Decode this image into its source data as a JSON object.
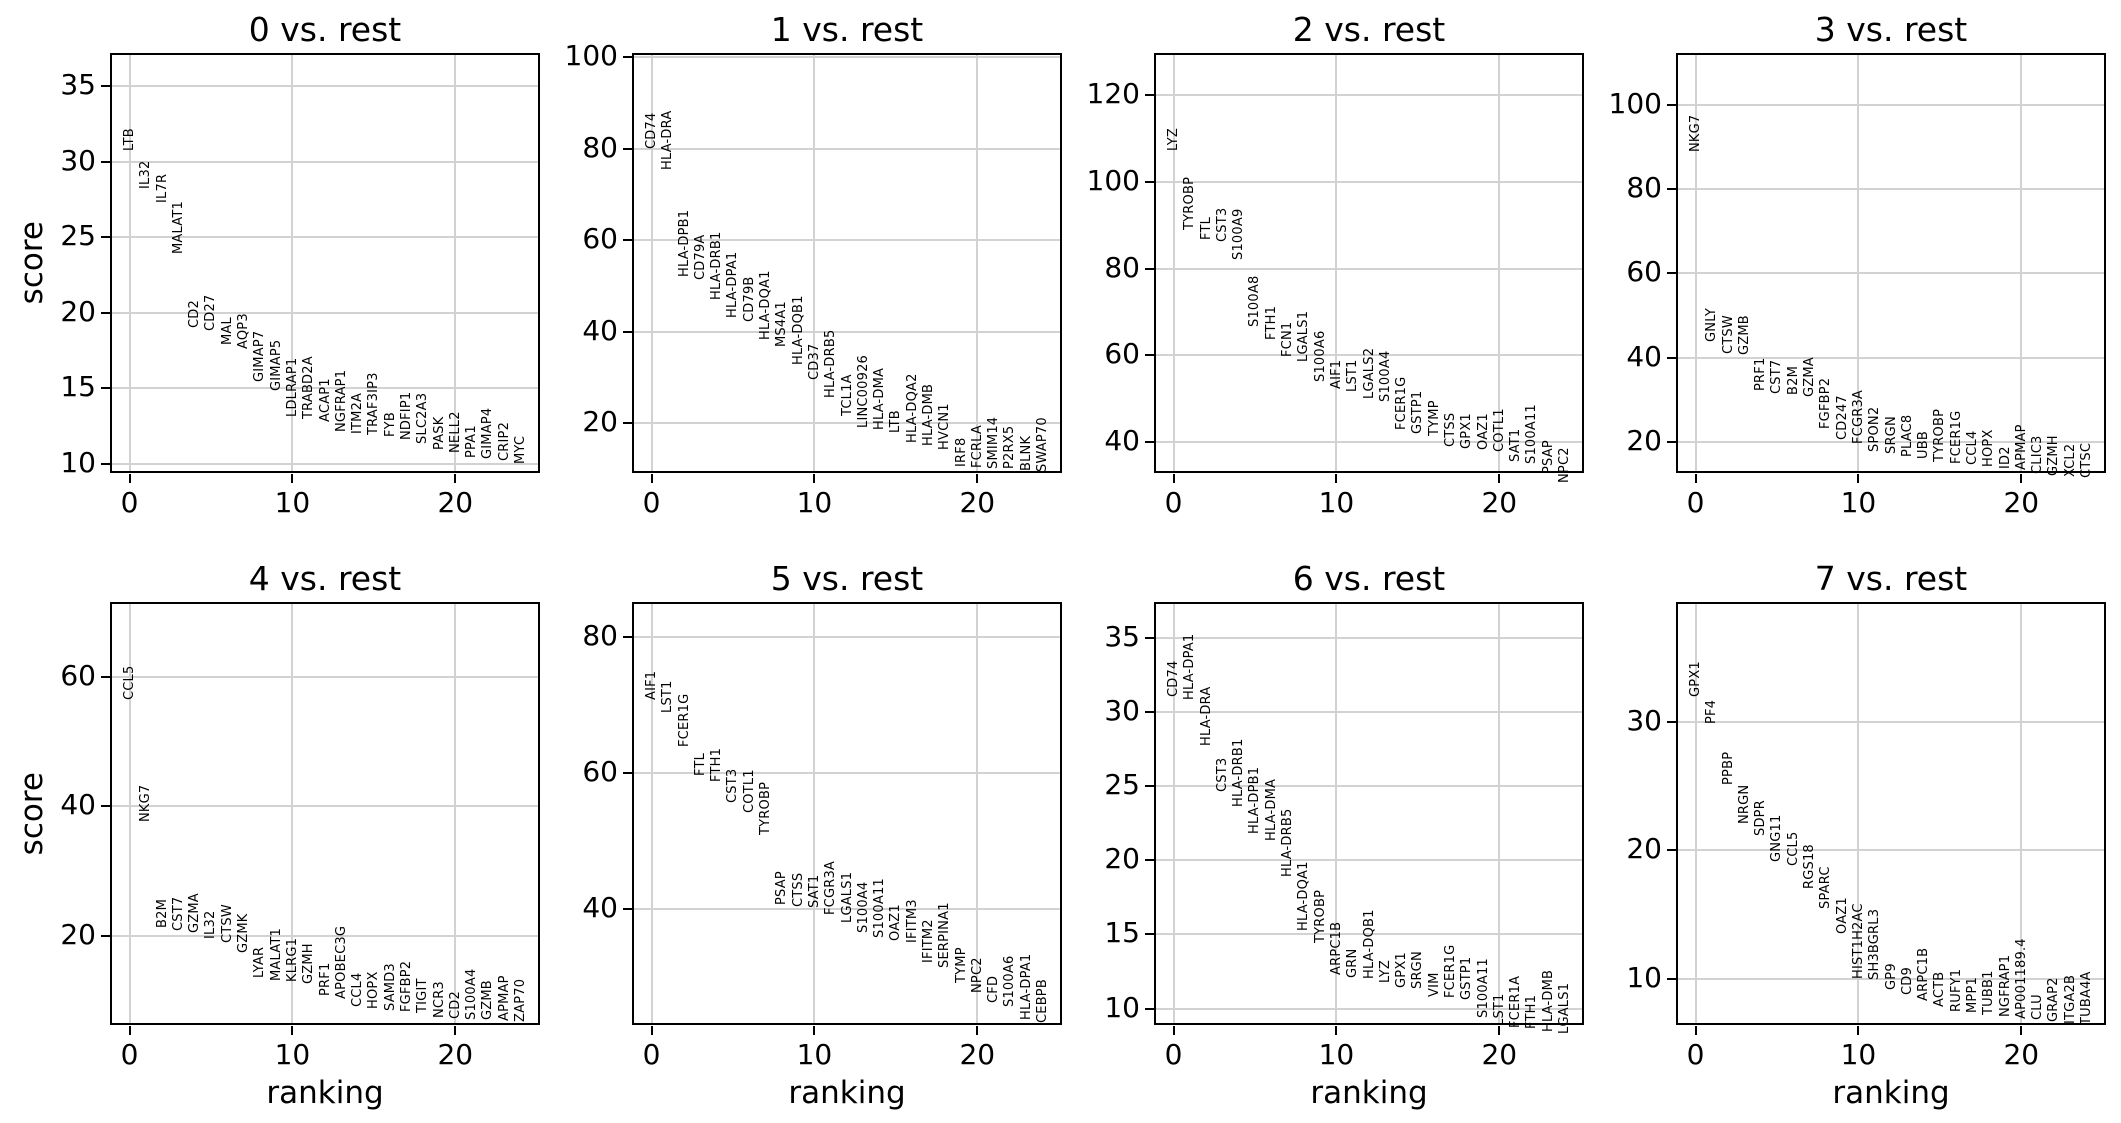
{
  "figure": {
    "background": "#ffffff",
    "text_color": "#000000",
    "grid_color": "#d2d2d2",
    "xlabel": "ranking",
    "ylabel": "score"
  },
  "chart_data": [
    {
      "type": "scatter",
      "title": "0 vs. rest",
      "xlabel": "ranking",
      "ylabel": "score",
      "x": [
        0,
        1,
        2,
        3,
        4,
        5,
        6,
        7,
        8,
        9,
        10,
        11,
        12,
        13,
        14,
        15,
        16,
        17,
        18,
        19,
        20,
        21,
        22,
        23,
        24
      ],
      "xlim": [
        -1.2,
        25.2
      ],
      "xticks": [
        0,
        10,
        20
      ],
      "yticks": [
        10,
        15,
        20,
        25,
        30,
        35
      ],
      "ylim": [
        9.4,
        37.2
      ],
      "grid": true,
      "show_xlabel": false,
      "show_ylabel": true,
      "genes": [
        "LTB",
        "IL32",
        "IL7R",
        "MALAT1",
        "CD2",
        "CD27",
        "MAL",
        "AQP3",
        "GIMAP7",
        "GIMAP5",
        "LDLRAP1",
        "TRABD2A",
        "ACAP1",
        "NGFRAP1",
        "ITM2A",
        "TRAF3IP3",
        "FYB",
        "NDFIP1",
        "SLC2A3",
        "PASK",
        "NELL2",
        "PPA1",
        "GIMAP4",
        "CRIP2",
        "MYC"
      ],
      "scores": [
        30.7,
        28.2,
        27.3,
        23.9,
        19.0,
        18.8,
        17.9,
        17.6,
        15.4,
        14.8,
        13.1,
        13.0,
        12.8,
        12.1,
        12.0,
        11.9,
        11.8,
        11.6,
        11.3,
        10.9,
        10.7,
        10.4,
        10.3,
        10.2,
        10.0
      ]
    },
    {
      "type": "scatter",
      "title": "1 vs. rest",
      "xlabel": "ranking",
      "ylabel": "score",
      "x": [
        0,
        1,
        2,
        3,
        4,
        5,
        6,
        7,
        8,
        9,
        10,
        11,
        12,
        13,
        14,
        15,
        16,
        17,
        18,
        19,
        20,
        21,
        22,
        23,
        24
      ],
      "xlim": [
        -1.2,
        25.2
      ],
      "xticks": [
        0,
        10,
        20
      ],
      "yticks": [
        20,
        40,
        60,
        80,
        100
      ],
      "ylim": [
        9.1,
        100.9
      ],
      "grid": true,
      "show_xlabel": false,
      "show_ylabel": false,
      "genes": [
        "CD74",
        "HLA-DRA",
        "HLA-DPB1",
        "CD79A",
        "HLA-DRB1",
        "HLA-DPA1",
        "CD79B",
        "HLA-DQA1",
        "MS4A1",
        "HLA-DQB1",
        "CD37",
        "HLA-DRB5",
        "TCL1A",
        "LINC00926",
        "HLA-DMA",
        "LTB",
        "HLA-DQA2",
        "HLA-DMB",
        "HVCN1",
        "IRF8",
        "FCRLA",
        "SMIM14",
        "P2RX5",
        "BLNK",
        "SWAP70"
      ],
      "scores": [
        80.0,
        75.3,
        52.0,
        51.3,
        46.9,
        42.9,
        42.2,
        38.2,
        36.7,
        32.7,
        29.5,
        25.5,
        21.5,
        18.9,
        18.5,
        17.8,
        15.6,
        14.9,
        14.2,
        10.5,
        10.2,
        10.0,
        9.9,
        9.6,
        9.3
      ]
    },
    {
      "type": "scatter",
      "title": "2 vs. rest",
      "xlabel": "ranking",
      "ylabel": "score",
      "x": [
        0,
        1,
        2,
        3,
        4,
        5,
        6,
        7,
        8,
        9,
        10,
        11,
        12,
        13,
        14,
        15,
        16,
        17,
        18,
        19,
        20,
        21,
        22,
        23,
        24
      ],
      "xlim": [
        -1.2,
        25.2
      ],
      "xticks": [
        0,
        10,
        20
      ],
      "yticks": [
        40,
        60,
        80,
        100,
        120
      ],
      "ylim": [
        32.9,
        129.7
      ],
      "grid": true,
      "show_xlabel": false,
      "show_ylabel": false,
      "genes": [
        "LYZ",
        "TYROBP",
        "FTL",
        "CST3",
        "S100A9",
        "S100A8",
        "FTH1",
        "FCN1",
        "LGALS1",
        "S100A6",
        "AIF1",
        "LST1",
        "LGALS2",
        "S100A4",
        "FCER1G",
        "GSTP1",
        "TYMP",
        "CTSS",
        "GPX1",
        "OAZ1",
        "COTL1",
        "SAT1",
        "S100A11",
        "PSAP",
        "NPC2"
      ],
      "scores": [
        107.0,
        88.8,
        86.5,
        86.2,
        81.9,
        66.5,
        63.5,
        59.6,
        58.5,
        53.8,
        52.3,
        51.5,
        50.0,
        49.2,
        42.7,
        41.9,
        41.5,
        38.8,
        38.5,
        38.1,
        37.7,
        35.4,
        35.0,
        32.7,
        30.5
      ]
    },
    {
      "type": "scatter",
      "title": "3 vs. rest",
      "xlabel": "ranking",
      "ylabel": "score",
      "x": [
        0,
        1,
        2,
        3,
        4,
        5,
        6,
        7,
        8,
        9,
        10,
        11,
        12,
        13,
        14,
        15,
        16,
        17,
        18,
        19,
        20,
        21,
        22,
        23,
        24
      ],
      "xlim": [
        -1.2,
        25.2
      ],
      "xticks": [
        0,
        10,
        20
      ],
      "yticks": [
        20,
        40,
        60,
        80,
        100
      ],
      "ylim": [
        12.6,
        112.3
      ],
      "grid": true,
      "show_xlabel": false,
      "show_ylabel": false,
      "genes": [
        "NKG7",
        "GNLY",
        "CTSW",
        "GZMB",
        "PRF1",
        "CST7",
        "B2M",
        "GZMA",
        "FGFBP2",
        "CD247",
        "FCGR3A",
        "SPON2",
        "SRGN",
        "PLAC8",
        "UBB",
        "TYROBP",
        "FCER1G",
        "CCL4",
        "HOPX",
        "ID2",
        "APMAP",
        "CLIC3",
        "GZMH",
        "XCL2",
        "CTSC"
      ],
      "scores": [
        88.9,
        43.7,
        40.9,
        40.5,
        32.1,
        31.3,
        31.0,
        30.6,
        23.0,
        20.4,
        19.6,
        17.6,
        17.2,
        16.4,
        16.0,
        15.2,
        14.8,
        14.4,
        14.0,
        13.6,
        13.2,
        12.4,
        12.0,
        11.6,
        11.3
      ]
    },
    {
      "type": "scatter",
      "title": "4 vs. rest",
      "xlabel": "ranking",
      "ylabel": "score",
      "x": [
        0,
        1,
        2,
        3,
        4,
        5,
        6,
        7,
        8,
        9,
        10,
        11,
        12,
        13,
        14,
        15,
        16,
        17,
        18,
        19,
        20,
        21,
        22,
        23,
        24
      ],
      "xlim": [
        -1.2,
        25.2
      ],
      "xticks": [
        0,
        10,
        20
      ],
      "yticks": [
        20,
        40,
        60
      ],
      "ylim": [
        6.3,
        71.5
      ],
      "grid": true,
      "show_xlabel": true,
      "show_ylabel": true,
      "genes": [
        "CCL5",
        "NKG7",
        "B2M",
        "CST7",
        "GZMA",
        "IL32",
        "CTSW",
        "GZMK",
        "LYAR",
        "MALAT1",
        "KLRG1",
        "GZMH",
        "PRF1",
        "APOBEC3G",
        "CCL4",
        "HOPX",
        "SAMD3",
        "FGFBP2",
        "TIGIT",
        "NCR3",
        "CD2",
        "S100A4",
        "GZMB",
        "APMAP",
        "ZAP70"
      ],
      "scores": [
        56.4,
        37.6,
        21.2,
        20.8,
        20.5,
        19.5,
        19.0,
        17.4,
        13.6,
        13.1,
        12.9,
        12.6,
        10.8,
        10.3,
        9.0,
        8.8,
        8.5,
        8.3,
        8.1,
        7.4,
        7.2,
        7.1,
        7.0,
        6.9,
        6.8
      ]
    },
    {
      "type": "scatter",
      "title": "5 vs. rest",
      "xlabel": "ranking",
      "ylabel": "score",
      "x": [
        0,
        1,
        2,
        3,
        4,
        5,
        6,
        7,
        8,
        9,
        10,
        11,
        12,
        13,
        14,
        15,
        16,
        17,
        18,
        19,
        20,
        21,
        22,
        23,
        24
      ],
      "xlim": [
        -1.2,
        25.2
      ],
      "xticks": [
        0,
        10,
        20
      ],
      "yticks": [
        40,
        60,
        80
      ],
      "ylim": [
        22.9,
        85.1
      ],
      "grid": true,
      "show_xlabel": true,
      "show_ylabel": false,
      "genes": [
        "AIF1",
        "LST1",
        "FCER1G",
        "FTL",
        "FTH1",
        "CST3",
        "COTL1",
        "TYROBP",
        "PSAP",
        "CTSS",
        "SAT1",
        "FCGR3A",
        "LGALS1",
        "S100A4",
        "S100A11",
        "OAZ1",
        "IFITM3",
        "IFITM2",
        "SERPINA1",
        "TYMP",
        "NPC2",
        "CFD",
        "S100A6",
        "HLA-DPA1",
        "CEBPB"
      ],
      "scores": [
        70.7,
        68.8,
        63.8,
        59.5,
        58.7,
        55.6,
        54.1,
        50.9,
        40.6,
        40.3,
        40.1,
        39.1,
        37.9,
        36.4,
        35.7,
        35.2,
        35.0,
        32.0,
        31.3,
        29.1,
        27.6,
        26.2,
        25.6,
        23.7,
        23.2
      ]
    },
    {
      "type": "scatter",
      "title": "6 vs. rest",
      "xlabel": "ranking",
      "ylabel": "score",
      "x": [
        0,
        1,
        2,
        3,
        4,
        5,
        6,
        7,
        8,
        9,
        10,
        11,
        12,
        13,
        14,
        15,
        16,
        17,
        18,
        19,
        20,
        21,
        22,
        23,
        24
      ],
      "xlim": [
        -1.2,
        25.2
      ],
      "xticks": [
        0,
        10,
        20
      ],
      "yticks": [
        10,
        15,
        20,
        25,
        30,
        35
      ],
      "ylim": [
        8.9,
        37.4
      ],
      "grid": true,
      "show_xlabel": true,
      "show_ylabel": false,
      "genes": [
        "CD74",
        "HLA-DPA1",
        "HLA-DRA",
        "CST3",
        "HLA-DRB1",
        "HLA-DPB1",
        "HLA-DMA",
        "HLA-DRB5",
        "HLA-DQA1",
        "TYROBP",
        "ARPC1B",
        "GRN",
        "HLA-DQB1",
        "LYZ",
        "GPX1",
        "SRGN",
        "VIM",
        "FCER1G",
        "GSTP1",
        "S100A11",
        "LST1",
        "FCER1A",
        "FTH1",
        "HLA-DMB",
        "LGALS1"
      ],
      "scores": [
        31.0,
        30.8,
        27.7,
        24.6,
        23.6,
        21.8,
        21.3,
        18.9,
        15.2,
        14.4,
        12.3,
        12.1,
        12.0,
        11.7,
        11.4,
        11.3,
        10.8,
        10.7,
        10.6,
        9.4,
        8.8,
        8.7,
        8.6,
        8.4,
        8.3
      ]
    },
    {
      "type": "scatter",
      "title": "7 vs. rest",
      "xlabel": "ranking",
      "ylabel": "score",
      "x": [
        0,
        1,
        2,
        3,
        4,
        5,
        6,
        7,
        8,
        9,
        10,
        11,
        12,
        13,
        14,
        15,
        16,
        17,
        18,
        19,
        20,
        21,
        22,
        23,
        24
      ],
      "xlim": [
        -1.2,
        25.2
      ],
      "xticks": [
        0,
        10,
        20
      ],
      "yticks": [
        10,
        20,
        30
      ],
      "ylim": [
        6.4,
        39.3
      ],
      "grid": true,
      "show_xlabel": true,
      "show_ylabel": false,
      "genes": [
        "GPX1",
        "PF4",
        "PPBP",
        "NRGN",
        "SDPR",
        "GNG11",
        "CCL5",
        "RGS18",
        "SPARC",
        "OAZ1",
        "HIST1H2AC",
        "SH3BGRL3",
        "GP9",
        "CD9",
        "ARPC1B",
        "ACTB",
        "RUFY1",
        "MPP1",
        "TUBB1",
        "NGFRAP1",
        "AP001189.4",
        "CLU",
        "GRAP2",
        "ITGA2B",
        "TUBA4A"
      ],
      "scores": [
        31.9,
        29.8,
        25.1,
        22.0,
        21.1,
        19.1,
        18.8,
        17.0,
        15.4,
        13.5,
        10.0,
        9.9,
        9.1,
        8.7,
        8.3,
        7.8,
        7.4,
        7.3,
        7.2,
        7.0,
        6.9,
        6.8,
        6.6,
        6.5,
        6.4
      ]
    }
  ]
}
